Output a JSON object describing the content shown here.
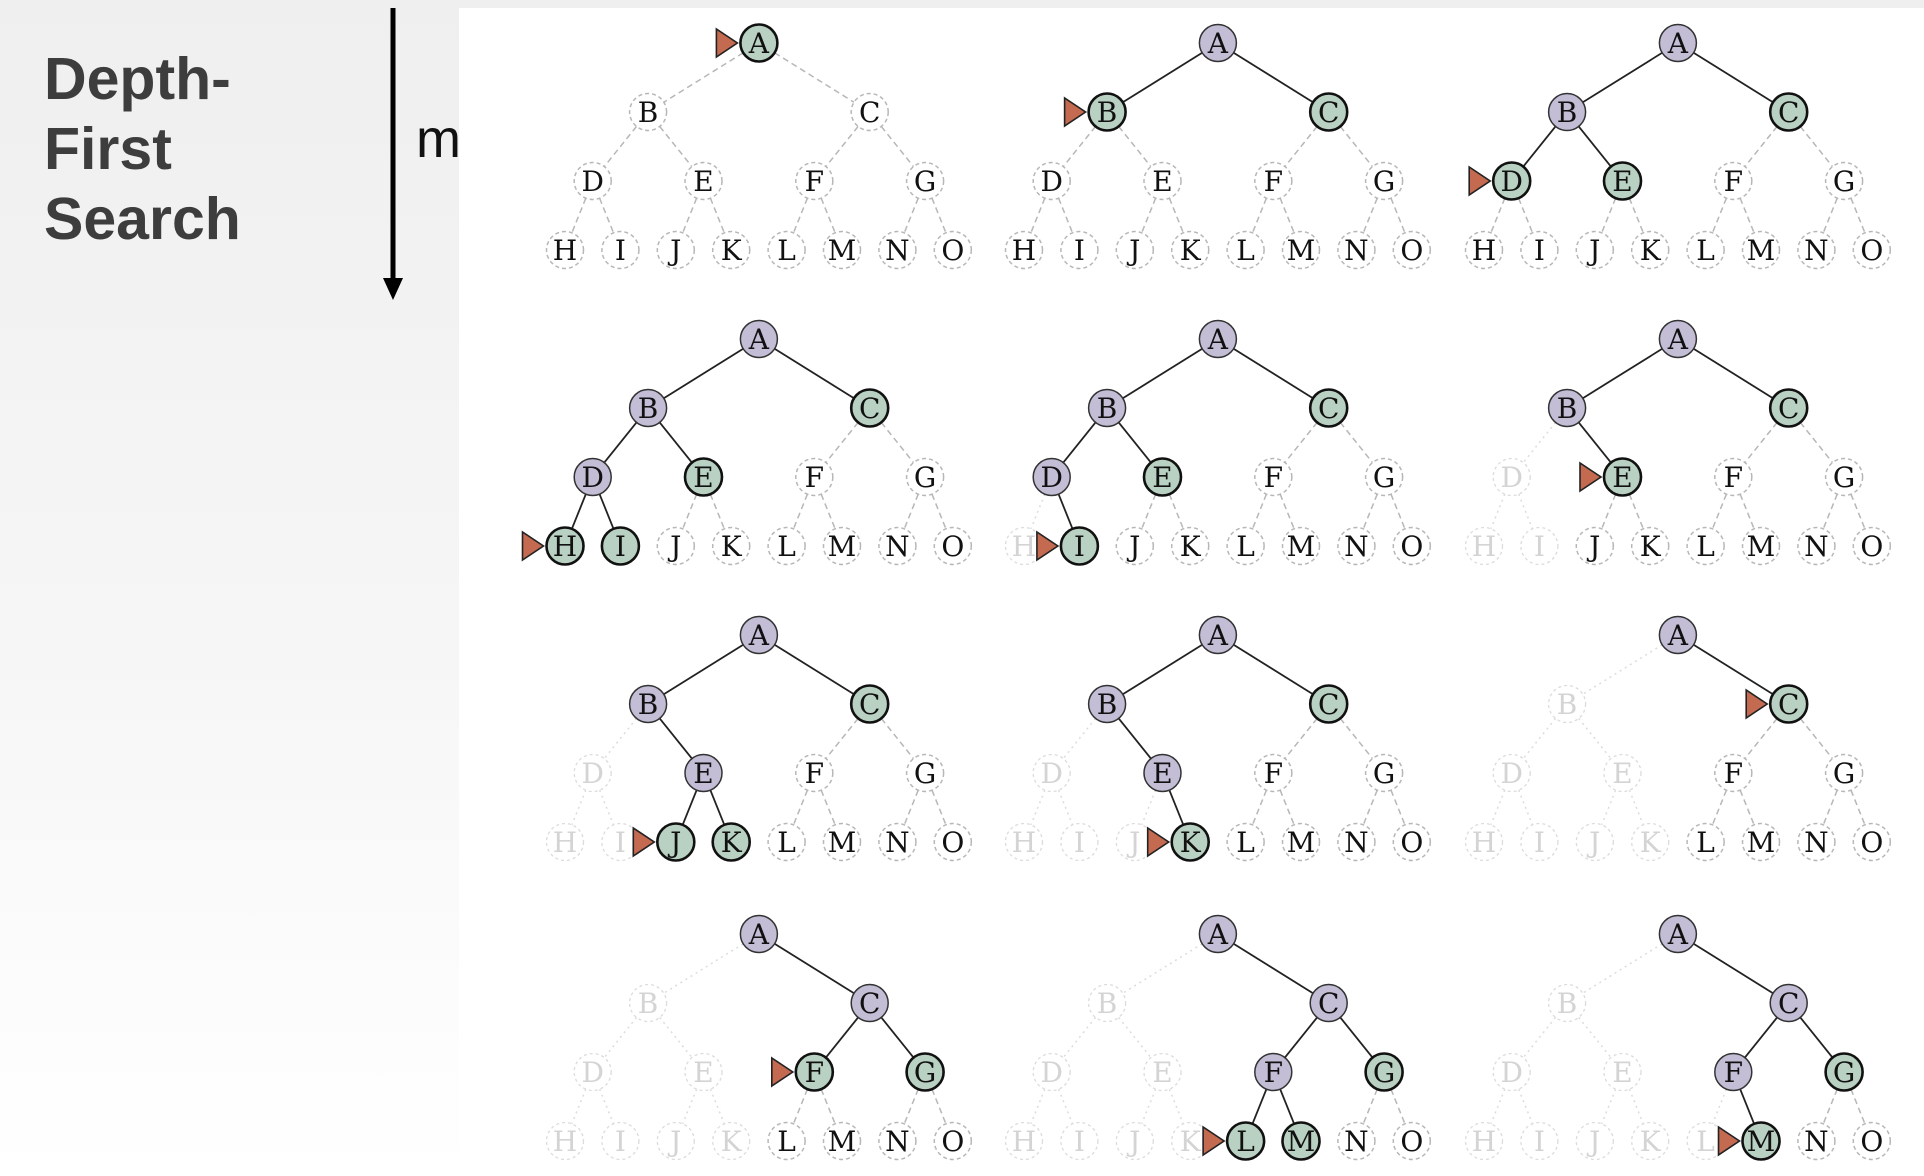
{
  "title": {
    "lines": [
      "Depth-",
      "First",
      "Search"
    ]
  },
  "depth_label": "m",
  "tree": {
    "nodes": [
      "A",
      "B",
      "C",
      "D",
      "E",
      "F",
      "G",
      "H",
      "I",
      "J",
      "K",
      "L",
      "M",
      "N",
      "O"
    ]
  },
  "colors": {
    "expanded": "#c3bdd6",
    "frontier": "#b9d1c2",
    "pointer": "#c46a50",
    "dashed": "#b7b7b7",
    "faded": "#dcdcdc"
  },
  "steps": [
    {
      "expanded": [],
      "frontier": [
        "A"
      ],
      "removed": [],
      "current": "A"
    },
    {
      "expanded": [
        "A"
      ],
      "frontier": [
        "B",
        "C"
      ],
      "removed": [],
      "current": "B"
    },
    {
      "expanded": [
        "A",
        "B"
      ],
      "frontier": [
        "C",
        "D",
        "E"
      ],
      "removed": [],
      "current": "D"
    },
    {
      "expanded": [
        "A",
        "B",
        "D"
      ],
      "frontier": [
        "C",
        "E",
        "H",
        "I"
      ],
      "removed": [],
      "current": "H"
    },
    {
      "expanded": [
        "A",
        "B",
        "D"
      ],
      "frontier": [
        "C",
        "E",
        "I"
      ],
      "removed": [
        "H"
      ],
      "current": "I"
    },
    {
      "expanded": [
        "A",
        "B"
      ],
      "frontier": [
        "C",
        "E"
      ],
      "removed": [
        "D",
        "H",
        "I"
      ],
      "current": "E"
    },
    {
      "expanded": [
        "A",
        "B",
        "E"
      ],
      "frontier": [
        "C",
        "J",
        "K"
      ],
      "removed": [
        "D",
        "H",
        "I"
      ],
      "current": "J"
    },
    {
      "expanded": [
        "A",
        "B",
        "E"
      ],
      "frontier": [
        "C",
        "K"
      ],
      "removed": [
        "D",
        "H",
        "I",
        "J"
      ],
      "current": "K"
    },
    {
      "expanded": [
        "A"
      ],
      "frontier": [
        "C"
      ],
      "removed": [
        "B",
        "D",
        "E",
        "H",
        "I",
        "J",
        "K"
      ],
      "current": "C"
    },
    {
      "expanded": [
        "A",
        "C"
      ],
      "frontier": [
        "F",
        "G"
      ],
      "removed": [
        "B",
        "D",
        "E",
        "H",
        "I",
        "J",
        "K"
      ],
      "current": "F"
    },
    {
      "expanded": [
        "A",
        "C",
        "F"
      ],
      "frontier": [
        "G",
        "L",
        "M"
      ],
      "removed": [
        "B",
        "D",
        "E",
        "H",
        "I",
        "J",
        "K"
      ],
      "current": "L"
    },
    {
      "expanded": [
        "A",
        "C",
        "F"
      ],
      "frontier": [
        "G",
        "M"
      ],
      "removed": [
        "B",
        "D",
        "E",
        "H",
        "I",
        "J",
        "K",
        "L"
      ],
      "current": "M"
    }
  ]
}
